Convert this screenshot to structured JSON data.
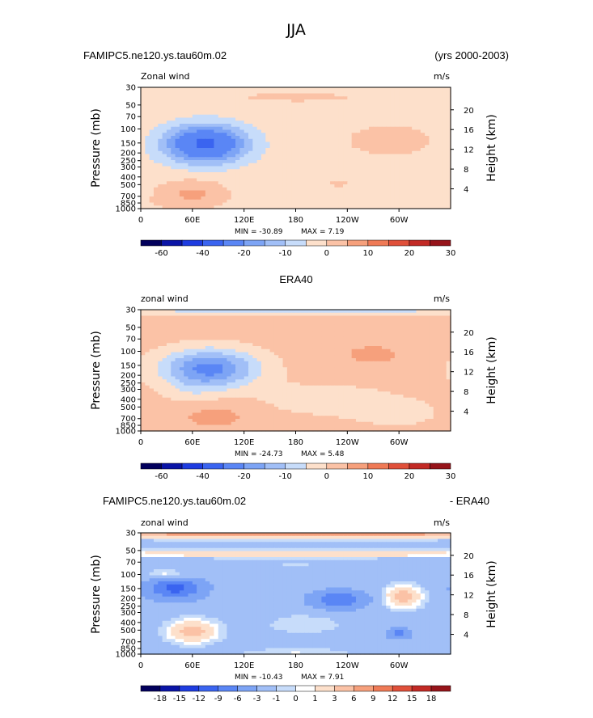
{
  "title": "JJA",
  "years": "(yrs 2000-2003)",
  "chart_data": [
    {
      "type": "heatmap",
      "name": "model",
      "title": "FAMIPC5.ne120.ys.tau60m.02",
      "subtitle": "Zonal wind",
      "units": "m/s",
      "ylabel": "Pressure (mb)",
      "ylabel_right": "Height (km)",
      "xticks": [
        "0",
        "60E",
        "120E",
        "180",
        "120W",
        "60W"
      ],
      "yticks": [
        "30",
        "50",
        "70",
        "100",
        "150",
        "200",
        "250",
        "300",
        "400",
        "500",
        "700",
        "850",
        "1000"
      ],
      "yticks_right": [
        "20",
        "16",
        "12",
        "8",
        "4"
      ],
      "min_label": "MIN = -30.89",
      "max_label": "MAX =   7.19",
      "colorbar_levels": [
        -70,
        -60,
        -50,
        -40,
        -30,
        -20,
        -15,
        -10,
        -5,
        0,
        5,
        10,
        15,
        20,
        25,
        30
      ],
      "colorbar_labels": [
        "-60",
        "-40",
        "-20",
        "-10",
        "0",
        "10",
        "20",
        "30"
      ],
      "colorbar_label_levels": [
        -60,
        -40,
        -20,
        -10,
        0,
        10,
        20,
        30
      ],
      "levels": [
        -70,
        -60,
        -50,
        -40,
        -30,
        -20,
        -15,
        -10,
        -5,
        0,
        5,
        10,
        15,
        20,
        25,
        30
      ],
      "background_value": -2,
      "features": [
        {
          "lon": 180,
          "p": 40,
          "w": 190,
          "h": 0.35,
          "v": 2.2
        },
        {
          "lon": 75,
          "p": 155,
          "w": 48,
          "h": 0.55,
          "v": -30
        },
        {
          "lon": 60,
          "p": 650,
          "w": 38,
          "h": 0.4,
          "v": 8
        },
        {
          "lon": 290,
          "p": 140,
          "w": 45,
          "h": 0.4,
          "v": 6
        },
        {
          "lon": 230,
          "p": 480,
          "w": 20,
          "h": 0.2,
          "v": 2.5
        },
        {
          "lon": 320,
          "p": 850,
          "w": 80,
          "h": 0.2,
          "v": 1.5
        }
      ]
    },
    {
      "type": "heatmap",
      "name": "obs",
      "title": "ERA40",
      "subtitle": "zonal wind",
      "units": "m/s",
      "ylabel": "Pressure (mb)",
      "ylabel_right": "Height (km)",
      "xticks": [
        "0",
        "60E",
        "120E",
        "180",
        "120W",
        "60W"
      ],
      "yticks": [
        "30",
        "50",
        "70",
        "100",
        "150",
        "200",
        "250",
        "300",
        "400",
        "500",
        "700",
        "850",
        "1000"
      ],
      "yticks_right": [
        "20",
        "16",
        "12",
        "8",
        "4"
      ],
      "min_label": "MIN = -24.73",
      "max_label": "MAX =   5.48",
      "colorbar_levels": [
        -70,
        -60,
        -50,
        -40,
        -30,
        -20,
        -15,
        -10,
        -5,
        0,
        5,
        10,
        15,
        20,
        25,
        30
      ],
      "colorbar_labels": [
        "-60",
        "-40",
        "-20",
        "-10",
        "0",
        "10",
        "20",
        "30"
      ],
      "colorbar_label_levels": [
        -60,
        -40,
        -20,
        -10,
        0,
        10,
        20,
        30
      ],
      "levels": [
        -70,
        -60,
        -50,
        -40,
        -30,
        -20,
        -15,
        -10,
        -5,
        0,
        5,
        10,
        15,
        20,
        25,
        30
      ],
      "background_value": 2,
      "features": [
        {
          "lon": 180,
          "p": 31,
          "w": 400,
          "h": 0.12,
          "v": -8
        },
        {
          "lon": 80,
          "p": 165,
          "w": 55,
          "h": 0.55,
          "v": -24
        },
        {
          "lon": 60,
          "p": 320,
          "w": 30,
          "h": 0.45,
          "v": -3
        },
        {
          "lon": 210,
          "p": 400,
          "w": 80,
          "h": 0.5,
          "v": -4
        },
        {
          "lon": 300,
          "p": 600,
          "w": 60,
          "h": 0.5,
          "v": -3
        },
        {
          "lon": 270,
          "p": 110,
          "w": 50,
          "h": 0.4,
          "v": 4
        },
        {
          "lon": 85,
          "p": 650,
          "w": 45,
          "h": 0.4,
          "v": 5
        }
      ]
    },
    {
      "type": "heatmap",
      "name": "diff",
      "title": "FAMIPC5.ne120.ys.tau60m.02",
      "title_right": "- ERA40",
      "subtitle": "zonal wind",
      "units": "m/s",
      "ylabel": "Pressure (mb)",
      "ylabel_right": "Height (km)",
      "xticks": [
        "0",
        "60E",
        "120E",
        "180",
        "120W",
        "60W"
      ],
      "yticks": [
        "30",
        "50",
        "70",
        "100",
        "150",
        "200",
        "250",
        "300",
        "400",
        "500",
        "700",
        "850",
        "1000"
      ],
      "yticks_right": [
        "20",
        "16",
        "12",
        "8",
        "4"
      ],
      "min_label": "MIN = -10.43",
      "max_label": "MAX =   7.91",
      "colorbar_levels": [
        -21,
        -18,
        -15,
        -12,
        -9,
        -6,
        -3,
        -1,
        0,
        1,
        3,
        6,
        9,
        12,
        15,
        18,
        21
      ],
      "colorbar_labels": [
        "-18",
        "-15",
        "-12",
        "-9",
        "-6",
        "-3",
        "-1",
        "0",
        "1",
        "3",
        "6",
        "9",
        "12",
        "15",
        "18"
      ],
      "colorbar_label_levels": [
        -18,
        -15,
        -12,
        -9,
        -6,
        -3,
        -1,
        0,
        1,
        3,
        6,
        9,
        12,
        15,
        18
      ],
      "levels": [
        -21,
        -18,
        -15,
        -12,
        -9,
        -6,
        -3,
        -1,
        0,
        1,
        3,
        6,
        9,
        12,
        15,
        18,
        21
      ],
      "background_value": -2,
      "features": [
        {
          "lon": 180,
          "p": 30,
          "w": 400,
          "h": 0.15,
          "v": 10
        },
        {
          "lon": 180,
          "p": 55,
          "w": 400,
          "h": 0.12,
          "v": 4
        },
        {
          "lon": 180,
          "p": 75,
          "w": 400,
          "h": 0.08,
          "v": 1
        },
        {
          "lon": 40,
          "p": 150,
          "w": 30,
          "h": 0.3,
          "v": -8
        },
        {
          "lon": 230,
          "p": 210,
          "w": 30,
          "h": 0.25,
          "v": -7
        },
        {
          "lon": 305,
          "p": 190,
          "w": 22,
          "h": 0.35,
          "v": 6
        },
        {
          "lon": 60,
          "p": 520,
          "w": 30,
          "h": 0.35,
          "v": 6
        },
        {
          "lon": 30,
          "p": 100,
          "w": 25,
          "h": 0.15,
          "v": 3
        },
        {
          "lon": 180,
          "p": 950,
          "w": 70,
          "h": 0.12,
          "v": 2
        },
        {
          "lon": 300,
          "p": 550,
          "w": 12,
          "h": 0.15,
          "v": -6
        },
        {
          "lon": 190,
          "p": 420,
          "w": 60,
          "h": 0.4,
          "v": 1.5
        }
      ]
    }
  ]
}
